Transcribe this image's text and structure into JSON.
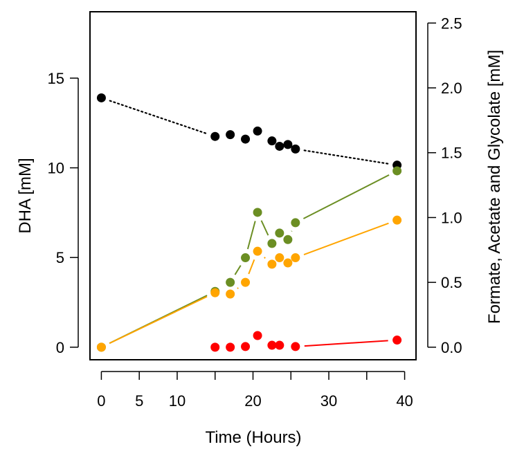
{
  "chart_data": {
    "type": "scatter",
    "title": "",
    "xlabel": "Time (Hours)",
    "ylabel_left": "DHA [mM]",
    "ylabel_right": "Formate, Acetate and Glycolate [mM]",
    "xlim": [
      -1.5,
      41.5
    ],
    "ylim_left": [
      -0.7,
      18.7
    ],
    "ylim_right": [
      -0.0968,
      2.587
    ],
    "x_ticks": [
      0,
      5,
      10,
      15,
      20,
      25,
      30,
      35,
      40
    ],
    "x_tick_labels": [
      "0",
      "5",
      "10",
      "",
      "20",
      "",
      "30",
      "",
      "40"
    ],
    "y_left_ticks": [
      0,
      5,
      10,
      15
    ],
    "y_left_tick_labels": [
      "0",
      "5",
      "10",
      "15"
    ],
    "y_right_ticks": [
      0.0,
      0.5,
      1.0,
      1.5,
      2.0,
      2.5
    ],
    "y_right_tick_labels": [
      "0.0",
      "0.5",
      "1.0",
      "1.5",
      "2.0",
      "2.5"
    ],
    "grid": false,
    "legend": "none",
    "series": [
      {
        "axis": "left",
        "color": "#000000",
        "line": "dotted",
        "x": [
          0,
          15,
          17,
          19,
          20.6,
          22.5,
          23.5,
          24.6,
          25.6,
          39
        ],
        "y": [
          13.9,
          11.75,
          11.85,
          11.6,
          12.05,
          11.5,
          11.2,
          11.3,
          11.05,
          10.15
        ]
      },
      {
        "axis": "right",
        "color": "#6b8e23",
        "line": "solid",
        "x": [
          0,
          15,
          17,
          19,
          20.6,
          22.5,
          23.5,
          24.6,
          25.6,
          39
        ],
        "y": [
          0.0,
          0.43,
          0.5,
          0.69,
          1.04,
          0.8,
          0.88,
          0.83,
          0.96,
          1.36
        ]
      },
      {
        "axis": "right",
        "color": "#ffa500",
        "line": "solid",
        "x": [
          0,
          15,
          17,
          19,
          20.6,
          22.5,
          23.5,
          24.6,
          25.6,
          39
        ],
        "y": [
          0.0,
          0.42,
          0.41,
          0.5,
          0.74,
          0.64,
          0.69,
          0.65,
          0.69,
          0.98
        ]
      },
      {
        "axis": "right",
        "color": "#ff0000",
        "line": "solid",
        "x": [
          15,
          17,
          19,
          20.6,
          22.5,
          23.5,
          25.6,
          39
        ],
        "y": [
          0.0,
          0.0,
          0.005,
          0.09,
          0.015,
          0.015,
          0.005,
          0.055
        ]
      }
    ]
  }
}
